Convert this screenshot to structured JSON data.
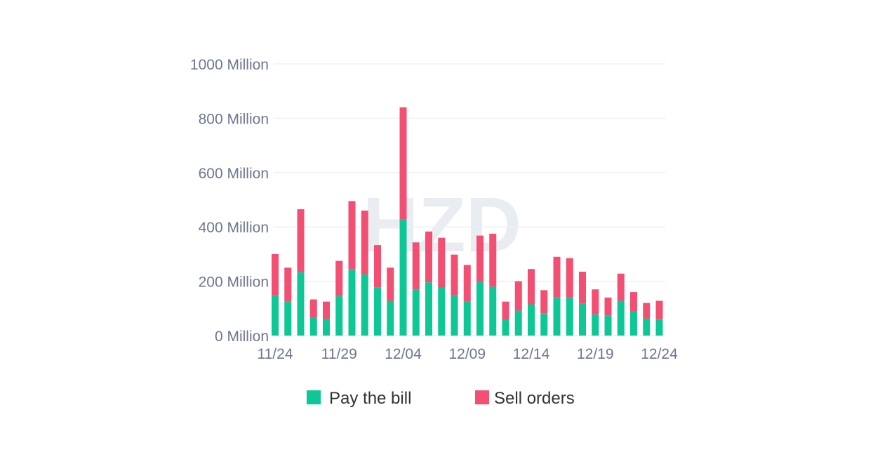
{
  "chart_data": {
    "type": "bar",
    "stacked": true,
    "categories": [
      "11/24",
      "11/25",
      "11/26",
      "11/27",
      "11/28",
      "11/29",
      "11/30",
      "12/01",
      "12/02",
      "12/03",
      "12/04",
      "12/05",
      "12/06",
      "12/07",
      "12/08",
      "12/09",
      "12/10",
      "12/11",
      "12/12",
      "12/13",
      "12/14",
      "12/15",
      "12/16",
      "12/17",
      "12/18",
      "12/19",
      "12/20",
      "12/21",
      "12/22",
      "12/23",
      "12/24"
    ],
    "tick_labels": [
      "11/24",
      "11/29",
      "12/04",
      "12/09",
      "12/14",
      "12/19",
      "12/24"
    ],
    "series": [
      {
        "name": "Pay the bill",
        "color": "#0dc896",
        "values": [
          148,
          125,
          233,
          65,
          62,
          145,
          245,
          225,
          178,
          128,
          428,
          170,
          196,
          177,
          148,
          125,
          198,
          180,
          58,
          92,
          115,
          82,
          140,
          142,
          118,
          78,
          73,
          128,
          88,
          63,
          60
        ]
      },
      {
        "name": "Sell orders",
        "color": "#f24f72",
        "values": [
          152,
          125,
          232,
          68,
          63,
          130,
          250,
          235,
          155,
          122,
          412,
          173,
          187,
          183,
          150,
          135,
          170,
          195,
          67,
          108,
          130,
          85,
          150,
          143,
          117,
          92,
          67,
          100,
          72,
          57,
          68
        ]
      }
    ],
    "ylim": [
      0,
      1000
    ],
    "yticks": [
      {
        "value": 0,
        "label": "0 Million"
      },
      {
        "value": 200,
        "label": "200 Million"
      },
      {
        "value": 400,
        "label": "400 Million"
      },
      {
        "value": 600,
        "label": "600 Million"
      },
      {
        "value": 800,
        "label": "800 Million"
      },
      {
        "value": 1000,
        "label": "1000 Million"
      }
    ],
    "grid": true,
    "legend_position": "bottom",
    "title": "",
    "xlabel": "",
    "ylabel": ""
  },
  "watermark": "HZD",
  "colors": {
    "grid": "#eef0f5",
    "axis_text": "#6e7690",
    "watermark": "#e9ecf1"
  }
}
